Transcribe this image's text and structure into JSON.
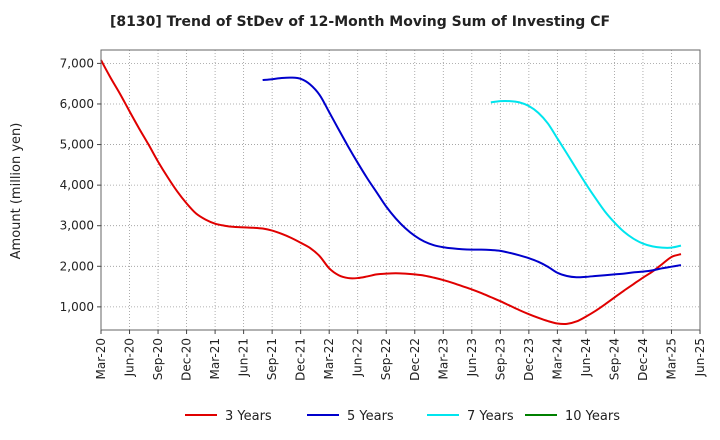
{
  "chart_data": {
    "type": "line",
    "title": "[8130]  Trend of StDev of 12-Month Moving Sum of Investing CF",
    "ylabel": "Amount (million yen)",
    "xlabel": "",
    "x_ticks": [
      "Mar-20",
      "Jun-20",
      "Sep-20",
      "Dec-20",
      "Mar-21",
      "Jun-21",
      "Sep-21",
      "Dec-21",
      "Mar-22",
      "Jun-22",
      "Sep-22",
      "Dec-22",
      "Mar-23",
      "Jun-23",
      "Sep-23",
      "Dec-23",
      "Mar-24",
      "Jun-24",
      "Sep-24",
      "Dec-24",
      "Mar-25",
      "Jun-25"
    ],
    "y_ticks": [
      1000,
      2000,
      3000,
      4000,
      5000,
      6000,
      7000
    ],
    "y_tick_labels": [
      "1,000",
      "2,000",
      "3,000",
      "4,000",
      "5,000",
      "6,000",
      "7,000"
    ],
    "ylim": [
      430,
      7330
    ],
    "grid": true,
    "legend_position": "bottom",
    "series": [
      {
        "name": "3 Years",
        "color": "#e00000",
        "points": [
          [
            "Mar-20",
            7080
          ],
          [
            "Apr-20",
            6650
          ],
          [
            "May-20",
            6250
          ],
          [
            "Jun-20",
            5820
          ],
          [
            "Jul-20",
            5400
          ],
          [
            "Aug-20",
            5000
          ],
          [
            "Sep-20",
            4580
          ],
          [
            "Oct-20",
            4200
          ],
          [
            "Nov-20",
            3850
          ],
          [
            "Dec-20",
            3550
          ],
          [
            "Jan-21",
            3300
          ],
          [
            "Feb-21",
            3150
          ],
          [
            "Mar-21",
            3050
          ],
          [
            "Apr-21",
            3000
          ],
          [
            "May-21",
            2970
          ],
          [
            "Jun-21",
            2960
          ],
          [
            "Jul-21",
            2950
          ],
          [
            "Aug-21",
            2930
          ],
          [
            "Sep-21",
            2880
          ],
          [
            "Oct-21",
            2800
          ],
          [
            "Nov-21",
            2700
          ],
          [
            "Dec-21",
            2580
          ],
          [
            "Jan-22",
            2450
          ],
          [
            "Feb-22",
            2250
          ],
          [
            "Mar-22",
            1950
          ],
          [
            "Apr-22",
            1780
          ],
          [
            "May-22",
            1710
          ],
          [
            "Jun-22",
            1710
          ],
          [
            "Jul-22",
            1750
          ],
          [
            "Aug-22",
            1800
          ],
          [
            "Sep-22",
            1820
          ],
          [
            "Oct-22",
            1830
          ],
          [
            "Nov-22",
            1820
          ],
          [
            "Dec-22",
            1800
          ],
          [
            "Jan-23",
            1770
          ],
          [
            "Feb-23",
            1720
          ],
          [
            "Mar-23",
            1660
          ],
          [
            "Apr-23",
            1590
          ],
          [
            "May-23",
            1510
          ],
          [
            "Jun-23",
            1430
          ],
          [
            "Jul-23",
            1340
          ],
          [
            "Aug-23",
            1240
          ],
          [
            "Sep-23",
            1140
          ],
          [
            "Oct-23",
            1030
          ],
          [
            "Nov-23",
            920
          ],
          [
            "Dec-23",
            820
          ],
          [
            "Jan-24",
            730
          ],
          [
            "Feb-24",
            650
          ],
          [
            "Mar-24",
            590
          ],
          [
            "Apr-24",
            580
          ],
          [
            "May-24",
            640
          ],
          [
            "Jun-24",
            760
          ],
          [
            "Jul-24",
            900
          ],
          [
            "Aug-24",
            1060
          ],
          [
            "Sep-24",
            1230
          ],
          [
            "Oct-24",
            1400
          ],
          [
            "Nov-24",
            1560
          ],
          [
            "Dec-24",
            1720
          ],
          [
            "Jan-25",
            1870
          ],
          [
            "Feb-25",
            2050
          ],
          [
            "Mar-25",
            2230
          ],
          [
            "Apr-25",
            2300
          ]
        ]
      },
      {
        "name": "5 Years",
        "color": "#0000cc",
        "points": [
          [
            "Aug-21",
            6590
          ],
          [
            "Sep-21",
            6610
          ],
          [
            "Oct-21",
            6640
          ],
          [
            "Nov-21",
            6650
          ],
          [
            "Dec-21",
            6620
          ],
          [
            "Jan-22",
            6480
          ],
          [
            "Feb-22",
            6220
          ],
          [
            "Mar-22",
            5800
          ],
          [
            "Apr-22",
            5370
          ],
          [
            "May-22",
            4950
          ],
          [
            "Jun-22",
            4550
          ],
          [
            "Jul-22",
            4170
          ],
          [
            "Aug-22",
            3820
          ],
          [
            "Sep-22",
            3470
          ],
          [
            "Oct-22",
            3180
          ],
          [
            "Nov-22",
            2940
          ],
          [
            "Dec-22",
            2750
          ],
          [
            "Jan-23",
            2610
          ],
          [
            "Feb-23",
            2520
          ],
          [
            "Mar-23",
            2470
          ],
          [
            "Apr-23",
            2440
          ],
          [
            "May-23",
            2420
          ],
          [
            "Jun-23",
            2410
          ],
          [
            "Jul-23",
            2410
          ],
          [
            "Aug-23",
            2400
          ],
          [
            "Sep-23",
            2380
          ],
          [
            "Oct-23",
            2330
          ],
          [
            "Nov-23",
            2270
          ],
          [
            "Dec-23",
            2200
          ],
          [
            "Jan-24",
            2110
          ],
          [
            "Feb-24",
            1990
          ],
          [
            "Mar-24",
            1840
          ],
          [
            "Apr-24",
            1760
          ],
          [
            "May-24",
            1730
          ],
          [
            "Jun-24",
            1740
          ],
          [
            "Jul-24",
            1760
          ],
          [
            "Aug-24",
            1780
          ],
          [
            "Sep-24",
            1800
          ],
          [
            "Oct-24",
            1820
          ],
          [
            "Nov-24",
            1850
          ],
          [
            "Dec-24",
            1870
          ],
          [
            "Jan-25",
            1900
          ],
          [
            "Feb-25",
            1950
          ],
          [
            "Mar-25",
            1990
          ],
          [
            "Apr-25",
            2030
          ]
        ]
      },
      {
        "name": "7 Years",
        "color": "#00e5ee",
        "points": [
          [
            "Aug-23",
            6040
          ],
          [
            "Sep-23",
            6070
          ],
          [
            "Oct-23",
            6070
          ],
          [
            "Nov-23",
            6040
          ],
          [
            "Dec-23",
            5950
          ],
          [
            "Jan-24",
            5780
          ],
          [
            "Feb-24",
            5520
          ],
          [
            "Mar-24",
            5150
          ],
          [
            "Apr-24",
            4780
          ],
          [
            "May-24",
            4400
          ],
          [
            "Jun-24",
            4030
          ],
          [
            "Jul-24",
            3680
          ],
          [
            "Aug-24",
            3350
          ],
          [
            "Sep-24",
            3080
          ],
          [
            "Oct-24",
            2850
          ],
          [
            "Nov-24",
            2680
          ],
          [
            "Dec-24",
            2560
          ],
          [
            "Jan-25",
            2490
          ],
          [
            "Feb-25",
            2460
          ],
          [
            "Mar-25",
            2460
          ],
          [
            "Apr-25",
            2510
          ]
        ]
      },
      {
        "name": "10 Years",
        "color": "#008000",
        "points": []
      }
    ]
  }
}
